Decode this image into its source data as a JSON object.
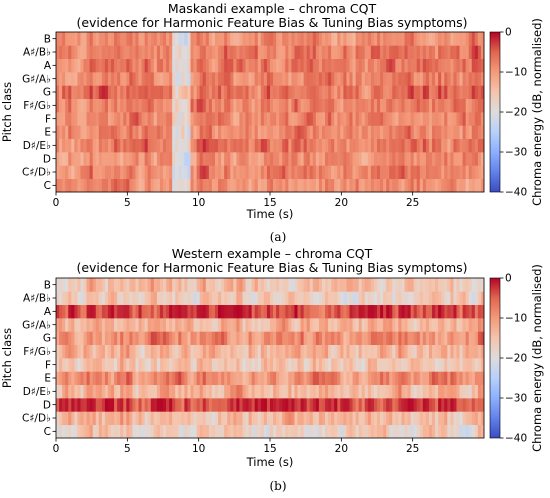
{
  "chart_data": [
    {
      "type": "heatmap",
      "title": "Maskandi example – chroma CQT",
      "subtitle": "(evidence for Harmonic Feature Bias & Tuning Bias symptoms)",
      "xlabel": "Time (s)",
      "ylabel": "Pitch class",
      "xlim": [
        0,
        30
      ],
      "x_ticks": [
        "0",
        "5",
        "10",
        "15",
        "20",
        "25"
      ],
      "y_categories": [
        "C",
        "C♯/D♭",
        "D",
        "D♯/E♭",
        "E",
        "F",
        "F♯/G♭",
        "G",
        "G♯/A♭",
        "A",
        "A♯/B♭",
        "B"
      ],
      "colorbar": {
        "label": "Chroma energy (dB, normalised)",
        "range": [
          -40,
          0
        ],
        "ticks": [
          "0",
          "−10",
          "−20",
          "−30",
          "−40"
        ],
        "colormap": "coolwarm"
      },
      "frames": 140,
      "row_mean_db": [
        -9,
        -8,
        -9,
        -7,
        -8,
        -8,
        -7,
        -6,
        -8,
        -7,
        -7,
        -9
      ],
      "caption": "(a)"
    },
    {
      "type": "heatmap",
      "title": "Western example – chroma CQT",
      "subtitle": "(evidence for Harmonic Feature Bias & Tuning Bias symptoms)",
      "xlabel": "Time (s)",
      "ylabel": "Pitch class",
      "xlim": [
        0,
        30
      ],
      "x_ticks": [
        "0",
        "5",
        "10",
        "15",
        "20",
        "25"
      ],
      "y_categories": [
        "C",
        "C♯/D♭",
        "D",
        "D♯/E♭",
        "E",
        "F",
        "F♯/G♭",
        "G",
        "G♯/A♭",
        "A",
        "A♯/B♭",
        "B"
      ],
      "colorbar": {
        "label": "Chroma energy (dB, normalised)",
        "range": [
          -40,
          0
        ],
        "ticks": [
          "0",
          "−10",
          "−20",
          "−30",
          "−40"
        ],
        "colormap": "coolwarm"
      },
      "frames": 140,
      "row_mean_db": [
        -17,
        -14,
        -3,
        -13,
        -9,
        -15,
        -13,
        -9,
        -13,
        -3,
        -16,
        -15
      ],
      "caption": "(b)"
    }
  ]
}
